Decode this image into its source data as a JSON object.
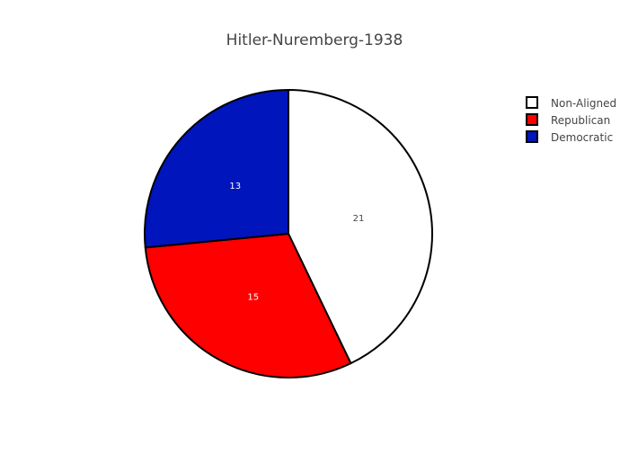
{
  "chart_data": {
    "type": "pie",
    "title": "Hitler-Nuremberg-1938",
    "labels": [
      "Non-Aligned",
      "Republican",
      "Democratic"
    ],
    "values": [
      21,
      15,
      13
    ],
    "colors": [
      "#ffffff",
      "#ff0000",
      "#0015bc"
    ],
    "text_colors": [
      "#444444",
      "#ffffff",
      "#ffffff"
    ],
    "outline_color": "#000000",
    "legend": {
      "position": "top-right"
    }
  }
}
